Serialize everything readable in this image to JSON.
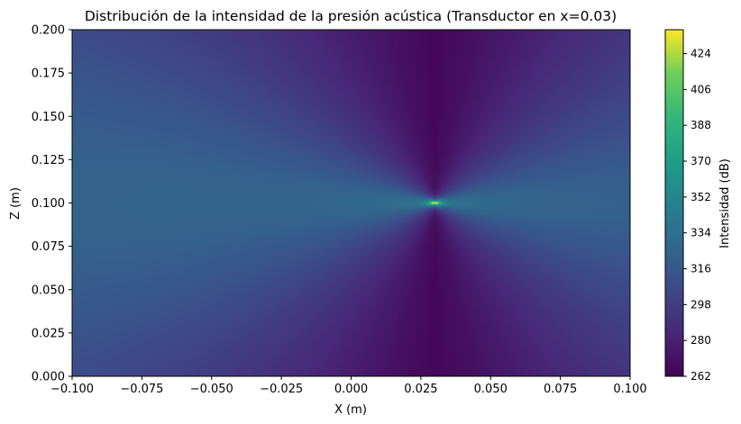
{
  "chart_data": {
    "type": "heatmap",
    "title": "Distribución de la intensidad de la presión acústica (Transductor en x=0.03)",
    "xlabel": "X (m)",
    "ylabel": "Z (m)",
    "xlim": [
      -0.1,
      0.1
    ],
    "ylim": [
      0.0,
      0.2
    ],
    "x_ticks": [
      "−0.100",
      "−0.075",
      "−0.050",
      "−0.025",
      "0.000",
      "0.025",
      "0.050",
      "0.075",
      "0.100"
    ],
    "x_tick_values": [
      -0.1,
      -0.075,
      -0.05,
      -0.025,
      0.0,
      0.025,
      0.05,
      0.075,
      0.1
    ],
    "y_ticks": [
      "0.000",
      "0.025",
      "0.050",
      "0.075",
      "0.100",
      "0.125",
      "0.150",
      "0.175",
      "0.200"
    ],
    "y_tick_values": [
      0.0,
      0.025,
      0.05,
      0.075,
      0.1,
      0.125,
      0.15,
      0.175,
      0.2
    ],
    "colorbar": {
      "label": "Intensidad (dB)",
      "colormap": "viridis",
      "range": [
        262,
        436
      ],
      "ticks": [
        "262",
        "280",
        "298",
        "316",
        "334",
        "352",
        "370",
        "388",
        "406",
        "424"
      ],
      "tick_values": [
        262,
        280,
        298,
        316,
        334,
        352,
        370,
        388,
        406,
        424
      ]
    },
    "source": {
      "x": 0.03,
      "z": 0.1,
      "peak_db": 436
    },
    "field_samples": [
      {
        "x": 0.03,
        "z": 0.1,
        "db": 436
      },
      {
        "x": 0.045,
        "z": 0.1,
        "db": 352
      },
      {
        "x": 0.015,
        "z": 0.1,
        "db": 352
      },
      {
        "x": 0.1,
        "z": 0.1,
        "db": 330
      },
      {
        "x": -0.1,
        "z": 0.1,
        "db": 318
      },
      {
        "x": 0.03,
        "z": 0.2,
        "db": 265
      },
      {
        "x": 0.03,
        "z": 0.0,
        "db": 265
      },
      {
        "x": -0.1,
        "z": 0.2,
        "db": 305
      },
      {
        "x": 0.1,
        "z": 0.2,
        "db": 298
      }
    ],
    "grid": false
  }
}
